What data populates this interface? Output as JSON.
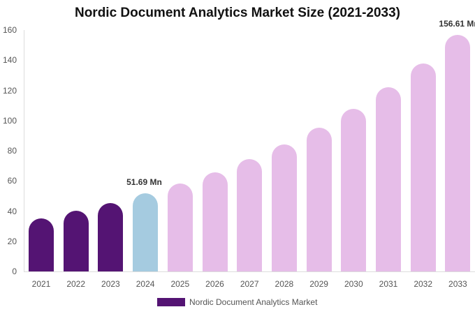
{
  "chart_data": {
    "type": "bar",
    "title": "Nordic Document Analytics Market Size (2021-2033)",
    "xlabel": "",
    "ylabel": "",
    "ylim": [
      0,
      160
    ],
    "yticks": [
      0,
      20,
      40,
      60,
      80,
      100,
      120,
      140,
      160
    ],
    "grid": false,
    "legend_position": "bottom",
    "categories": [
      "2021",
      "2022",
      "2023",
      "2024",
      "2025",
      "2026",
      "2027",
      "2028",
      "2029",
      "2030",
      "2031",
      "2032",
      "2033"
    ],
    "series": [
      {
        "name": "Nordic Document Analytics Market",
        "values": [
          35.1,
          40.2,
          45.3,
          51.69,
          58.3,
          65.7,
          74.4,
          84.2,
          95.3,
          107.7,
          122.0,
          137.8,
          156.61
        ]
      }
    ],
    "bar_colors": [
      "#541473",
      "#541473",
      "#541473",
      "#a5cbe0",
      "#e6bde8",
      "#e6bde8",
      "#e6bde8",
      "#e6bde8",
      "#e6bde8",
      "#e6bde8",
      "#e6bde8",
      "#e6bde8",
      "#e6bde8"
    ],
    "annotations": [
      {
        "category": "2024",
        "text": "51.69 Mn"
      },
      {
        "category": "2033",
        "text": "156.61 Mn"
      }
    ]
  },
  "legend": {
    "label": "Nordic Document Analytics Market",
    "color": "#541473"
  }
}
